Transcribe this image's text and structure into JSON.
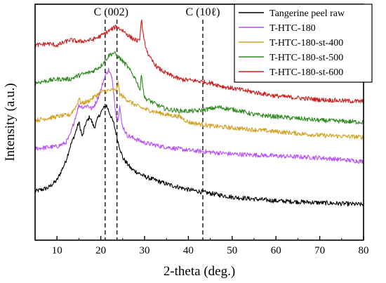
{
  "chart_data": {
    "type": "line",
    "xlabel": "2-theta (deg.)",
    "ylabel": "Intensity (a.u.)",
    "xlim": [
      5,
      80
    ],
    "xticks": [
      10,
      20,
      30,
      40,
      50,
      60,
      70,
      80
    ],
    "yticks_visible": false,
    "grid": false,
    "legend_position": "top-right",
    "annotations": [
      {
        "text": "C (002)",
        "x_lines": [
          21.0,
          23.7
        ]
      },
      {
        "text": "C (10ℓ)",
        "x_lines": [
          43.3
        ]
      }
    ],
    "series": [
      {
        "name": "Tangerine peel raw",
        "color": "#000000",
        "points": [
          [
            5,
            0.26
          ],
          [
            8,
            0.28
          ],
          [
            10,
            0.32
          ],
          [
            12,
            0.42
          ],
          [
            13,
            0.5
          ],
          [
            14,
            0.56
          ],
          [
            15,
            0.63
          ],
          [
            15.8,
            0.55
          ],
          [
            16.5,
            0.62
          ],
          [
            17.5,
            0.66
          ],
          [
            18.5,
            0.6
          ],
          [
            19.5,
            0.66
          ],
          [
            20.5,
            0.7
          ],
          [
            21.3,
            0.72
          ],
          [
            22,
            0.68
          ],
          [
            23,
            0.62
          ],
          [
            24,
            0.52
          ],
          [
            25,
            0.44
          ],
          [
            27,
            0.38
          ],
          [
            30,
            0.34
          ],
          [
            35,
            0.3
          ],
          [
            40,
            0.27
          ],
          [
            45,
            0.25
          ],
          [
            50,
            0.23
          ],
          [
            60,
            0.21
          ],
          [
            70,
            0.2
          ],
          [
            80,
            0.19
          ]
        ]
      },
      {
        "name": "T-HTC-180",
        "color": "#b84dff",
        "points": [
          [
            5,
            0.49
          ],
          [
            10,
            0.5
          ],
          [
            12,
            0.52
          ],
          [
            13,
            0.56
          ],
          [
            14,
            0.64
          ],
          [
            15,
            0.72
          ],
          [
            16,
            0.71
          ],
          [
            17,
            0.72
          ],
          [
            18,
            0.7
          ],
          [
            19,
            0.74
          ],
          [
            20,
            0.8
          ],
          [
            21,
            0.88
          ],
          [
            21.8,
            0.91
          ],
          [
            22.5,
            0.87
          ],
          [
            23,
            0.78
          ],
          [
            23.5,
            0.66
          ],
          [
            24,
            0.65
          ],
          [
            24.3,
            0.72
          ],
          [
            24.8,
            0.62
          ],
          [
            26,
            0.56
          ],
          [
            30,
            0.52
          ],
          [
            34,
            0.5
          ],
          [
            40,
            0.48
          ],
          [
            50,
            0.46
          ],
          [
            60,
            0.45
          ],
          [
            70,
            0.44
          ],
          [
            80,
            0.42
          ]
        ]
      },
      {
        "name": "T-HTC-180-st-400",
        "color": "#d4a020",
        "points": [
          [
            5,
            0.64
          ],
          [
            10,
            0.66
          ],
          [
            13,
            0.67
          ],
          [
            14.5,
            0.72
          ],
          [
            15,
            0.76
          ],
          [
            15.5,
            0.73
          ],
          [
            17,
            0.74
          ],
          [
            20,
            0.79
          ],
          [
            22,
            0.8
          ],
          [
            23.5,
            0.8
          ],
          [
            24,
            0.84
          ],
          [
            24.3,
            0.78
          ],
          [
            26,
            0.75
          ],
          [
            28,
            0.72
          ],
          [
            30,
            0.7
          ],
          [
            35,
            0.67
          ],
          [
            38,
            0.66
          ],
          [
            40,
            0.63
          ],
          [
            45,
            0.61
          ],
          [
            50,
            0.6
          ],
          [
            55,
            0.59
          ],
          [
            60,
            0.58
          ],
          [
            70,
            0.56
          ],
          [
            80,
            0.55
          ]
        ]
      },
      {
        "name": "T-HTC-180-st-500",
        "color": "#2e8b1e",
        "points": [
          [
            5,
            0.84
          ],
          [
            10,
            0.86
          ],
          [
            13,
            0.86
          ],
          [
            15,
            0.88
          ],
          [
            18,
            0.9
          ],
          [
            20,
            0.93
          ],
          [
            22,
            0.99
          ],
          [
            23,
            1.0
          ],
          [
            24,
            0.98
          ],
          [
            26,
            0.93
          ],
          [
            28,
            0.86
          ],
          [
            29,
            0.8
          ],
          [
            29.3,
            0.9
          ],
          [
            29.6,
            0.82
          ],
          [
            30,
            0.76
          ],
          [
            33,
            0.72
          ],
          [
            35,
            0.7
          ],
          [
            38,
            0.69
          ],
          [
            42,
            0.69
          ],
          [
            47,
            0.71
          ],
          [
            52,
            0.69
          ],
          [
            55,
            0.67
          ],
          [
            60,
            0.66
          ],
          [
            70,
            0.64
          ],
          [
            80,
            0.63
          ]
        ]
      },
      {
        "name": "T-HTC-180-st-600",
        "color": "#cc1f1f",
        "points": [
          [
            5,
            1.04
          ],
          [
            8,
            1.05
          ],
          [
            10,
            1.04
          ],
          [
            13,
            1.07
          ],
          [
            15,
            1.06
          ],
          [
            18,
            1.07
          ],
          [
            20,
            1.09
          ],
          [
            22,
            1.12
          ],
          [
            23.5,
            1.14
          ],
          [
            25,
            1.12
          ],
          [
            27,
            1.08
          ],
          [
            28.8,
            1.06
          ],
          [
            29.3,
            1.18
          ],
          [
            29.8,
            1.07
          ],
          [
            31,
            0.98
          ],
          [
            33,
            0.92
          ],
          [
            35,
            0.89
          ],
          [
            38,
            0.86
          ],
          [
            42,
            0.85
          ],
          [
            45,
            0.84
          ],
          [
            48,
            0.82
          ],
          [
            55,
            0.79
          ],
          [
            60,
            0.77
          ],
          [
            70,
            0.75
          ],
          [
            80,
            0.74
          ]
        ]
      }
    ]
  }
}
